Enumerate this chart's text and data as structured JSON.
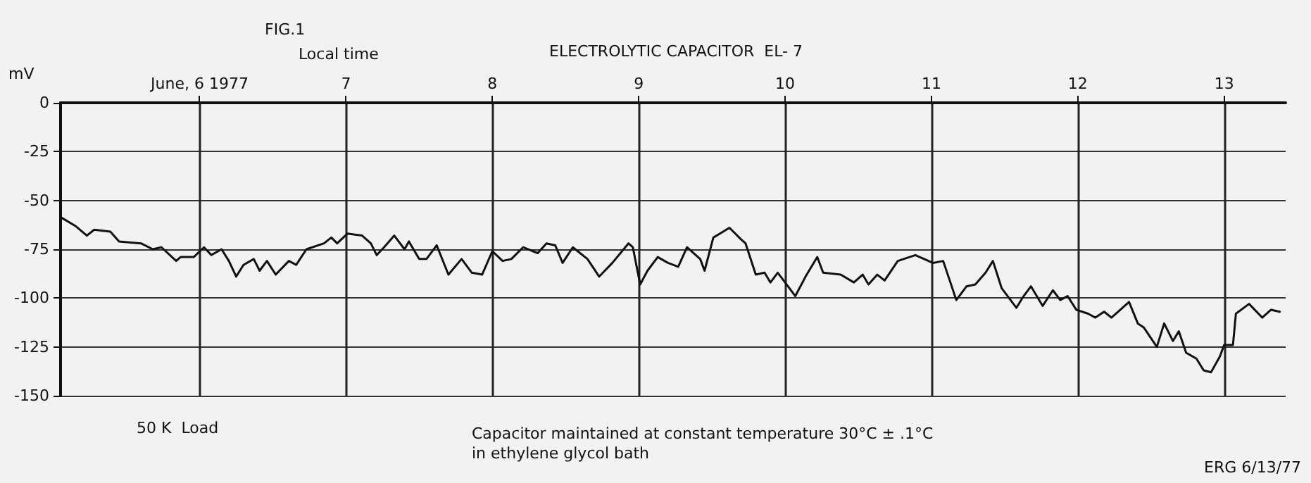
{
  "chart_data": {
    "type": "line",
    "title": "ELECTROLYTIC CAPACITOR  EL- 7",
    "xlabel": "Local time",
    "ylabel": "mV",
    "annotations": [
      "FIG.1",
      "50 K  Load",
      "Capacitor maintained at constant temperature 30°C ± .1°C\nin ethylene glycol bath",
      "ERG 6/13/77"
    ],
    "xlim": [
      5.05,
      13.42
    ],
    "xticks": [
      {
        "value": 6,
        "label": "June, 6 1977"
      },
      7,
      8,
      9,
      10,
      11,
      12,
      13
    ],
    "ylim": [
      -150,
      0
    ],
    "yticks": [
      -150,
      -125,
      -100,
      -75,
      -50,
      -25,
      0
    ],
    "grid": true,
    "series": [
      {
        "color": "#111111",
        "x": [
          5.06,
          5.15,
          5.23,
          5.28,
          5.39,
          5.45,
          5.6,
          5.68,
          5.74,
          5.84,
          5.87,
          5.96,
          6.03,
          6.08,
          6.15,
          6.2,
          6.25,
          6.3,
          6.37,
          6.41,
          6.46,
          6.52,
          6.61,
          6.66,
          6.73,
          6.85,
          6.9,
          6.94,
          7.01,
          7.11,
          7.17,
          7.21,
          7.26,
          7.33,
          7.4,
          7.43,
          7.5,
          7.55,
          7.62,
          7.7,
          7.79,
          7.86,
          7.93,
          8.0,
          8.07,
          8.13,
          8.21,
          8.31,
          8.37,
          8.43,
          8.48,
          8.55,
          8.65,
          8.73,
          8.82,
          8.93,
          8.96,
          9.01,
          9.06,
          9.13,
          9.2,
          9.27,
          9.33,
          9.42,
          9.45,
          9.51,
          9.62,
          9.7,
          9.73,
          9.8,
          9.86,
          9.9,
          9.95,
          10.0,
          10.07,
          10.14,
          10.22,
          10.26,
          10.38,
          10.47,
          10.53,
          10.57,
          10.63,
          10.68,
          10.77,
          10.89,
          11.01,
          11.08,
          11.17,
          11.24,
          11.3,
          11.37,
          11.42,
          11.48,
          11.58,
          11.63,
          11.68,
          11.76,
          11.83,
          11.88,
          11.93,
          11.99,
          12.07,
          12.12,
          12.18,
          12.23,
          12.35,
          12.41,
          12.45,
          12.54,
          12.59,
          12.65,
          12.69,
          12.74,
          12.81,
          12.86,
          12.91,
          12.97,
          13.0,
          13.06,
          13.08,
          13.17,
          13.26,
          13.32,
          13.38
        ],
        "values": [
          -59,
          -63,
          -68,
          -65,
          -66,
          -71,
          -72,
          -75,
          -74,
          -81,
          -79,
          -79,
          -74,
          -78,
          -75,
          -81,
          -89,
          -83,
          -80,
          -86,
          -81,
          -88,
          -81,
          -83,
          -75,
          -72,
          -69,
          -72,
          -67,
          -68,
          -72,
          -78,
          -74,
          -68,
          -75,
          -71,
          -80,
          -80,
          -73,
          -88,
          -80,
          -87,
          -88,
          -76,
          -81,
          -80,
          -74,
          -77,
          -72,
          -73,
          -82,
          -74,
          -80,
          -89,
          -82,
          -72,
          -74,
          -93,
          -86,
          -79,
          -82,
          -84,
          -74,
          -80,
          -86,
          -69,
          -64,
          -70,
          -72,
          -88,
          -87,
          -92,
          -87,
          -92,
          -99,
          -89,
          -79,
          -87,
          -88,
          -92,
          -88,
          -93,
          -88,
          -91,
          -81,
          -78,
          -82,
          -81,
          -101,
          -94,
          -93,
          -87,
          -81,
          -95,
          -105,
          -99,
          -94,
          -104,
          -96,
          -101,
          -99,
          -106,
          -108,
          -110,
          -107,
          -110,
          -102,
          -113,
          -115,
          -125,
          -113,
          -122,
          -117,
          -128,
          -131,
          -137,
          -138,
          -130,
          -124,
          -124,
          -108,
          -103,
          -110,
          -106,
          -107
        ]
      }
    ]
  }
}
